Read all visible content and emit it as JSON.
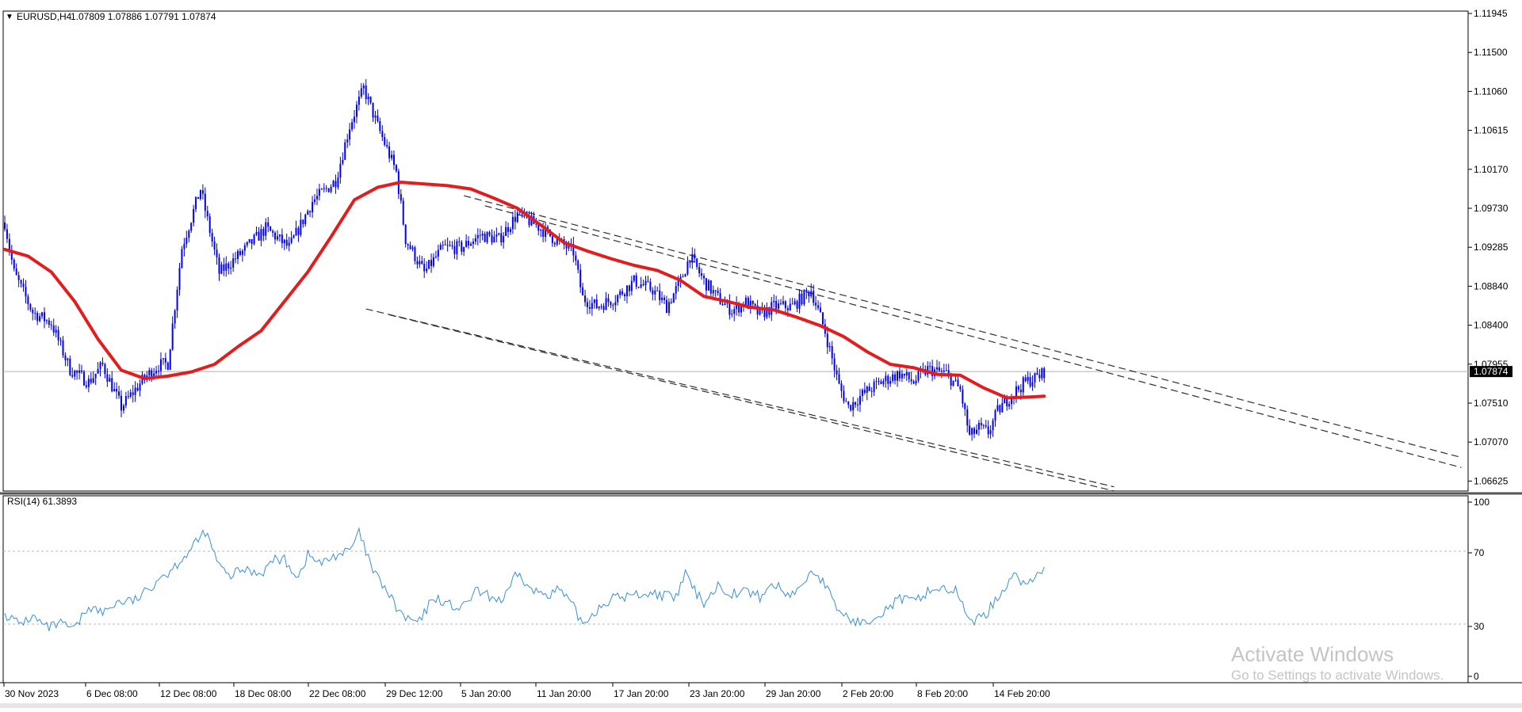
{
  "header": {
    "symbol": "EURUSD,H4",
    "ohlc": "1.07809 1.07886 1.07791 1.07874",
    "marker": "▼"
  },
  "rsi_panel": {
    "label": "RSI(14) 61.3893"
  },
  "watermark": {
    "line1": "Activate Windows",
    "line2": "Go to Settings to activate Windows."
  },
  "colors": {
    "bull": "#0000ff",
    "bear": "#0000ff",
    "wick": "#0000cc",
    "ma": "#e11d1d",
    "rsi": "#3a8fd9",
    "channel": "#303030"
  },
  "chart_data": [
    {
      "type": "candlestick",
      "title": "EURUSD,H4",
      "timeframe": "H4",
      "current_price": 1.07874,
      "ylim": [
        1.0645,
        1.1217
      ],
      "y_ticks": [
        "1.11945",
        "1.11500",
        "1.11060",
        "1.10615",
        "1.10170",
        "1.09730",
        "1.09285",
        "1.08840",
        "1.08400",
        "1.07955",
        "1.07510",
        "1.07070",
        "1.06625"
      ],
      "current_price_label": "1.07874",
      "x_ticks": [
        "30 Nov 2023",
        "6 Dec 08:00",
        "12 Dec 08:00",
        "18 Dec 08:00",
        "22 Dec 08:00",
        "29 Dec 12:00",
        "5 Jan 20:00",
        "11 Jan 20:00",
        "17 Jan 20:00",
        "23 Jan 20:00",
        "29 Jan 20:00",
        "2 Feb 20:00",
        "8 Feb 20:00",
        "14 Feb 20:00"
      ],
      "close_path": [
        [
          0,
          1.0965
        ],
        [
          4,
          1.0905
        ],
        [
          12,
          1.0858
        ],
        [
          20,
          1.0845
        ],
        [
          28,
          1.079
        ],
        [
          36,
          1.0775
        ],
        [
          42,
          1.0795
        ],
        [
          50,
          1.0745
        ],
        [
          60,
          1.078
        ],
        [
          66,
          1.0795
        ],
        [
          70,
          1.0797
        ],
        [
          76,
          1.0935
        ],
        [
          84,
          1.1005
        ],
        [
          92,
          1.0905
        ],
        [
          102,
          1.093
        ],
        [
          112,
          1.0958
        ],
        [
          122,
          1.0935
        ],
        [
          132,
          1.099
        ],
        [
          142,
          1.1015
        ],
        [
          148,
          1.108
        ],
        [
          154,
          1.1125
        ],
        [
          160,
          1.108
        ],
        [
          168,
          1.1025
        ],
        [
          172,
          1.0945
        ],
        [
          180,
          1.0905
        ],
        [
          188,
          1.0935
        ],
        [
          196,
          1.0935
        ],
        [
          204,
          1.095
        ],
        [
          212,
          1.0945
        ],
        [
          220,
          1.0975
        ],
        [
          228,
          1.0962
        ],
        [
          236,
          1.0945
        ],
        [
          244,
          1.093
        ],
        [
          248,
          1.0875
        ],
        [
          254,
          1.0865
        ],
        [
          262,
          1.0875
        ],
        [
          270,
          1.0895
        ],
        [
          278,
          1.0885
        ],
        [
          284,
          1.0865
        ],
        [
          290,
          1.0895
        ],
        [
          294,
          1.0925
        ],
        [
          300,
          1.0895
        ],
        [
          306,
          1.0875
        ],
        [
          312,
          1.086
        ],
        [
          318,
          1.087
        ],
        [
          324,
          1.0855
        ],
        [
          330,
          1.0865
        ],
        [
          338,
          1.0865
        ],
        [
          346,
          1.0885
        ],
        [
          352,
          1.0835
        ],
        [
          358,
          1.077
        ],
        [
          362,
          1.0745
        ],
        [
          368,
          1.076
        ],
        [
          376,
          1.0775
        ],
        [
          384,
          1.0785
        ],
        [
          390,
          1.0775
        ],
        [
          396,
          1.079
        ],
        [
          404,
          1.0785
        ],
        [
          410,
          1.0765
        ],
        [
          414,
          1.071
        ],
        [
          418,
          1.072
        ],
        [
          422,
          1.0715
        ],
        [
          426,
          1.074
        ],
        [
          432,
          1.076
        ],
        [
          438,
          1.0775
        ],
        [
          444,
          1.0782
        ],
        [
          446,
          1.07874
        ]
      ],
      "ma_path": [
        [
          0,
          1.0933
        ],
        [
          10,
          1.0925
        ],
        [
          20,
          1.0906
        ],
        [
          30,
          1.0871
        ],
        [
          40,
          1.0826
        ],
        [
          50,
          1.0789
        ],
        [
          60,
          1.0779
        ],
        [
          70,
          1.0782
        ],
        [
          80,
          1.0787
        ],
        [
          90,
          1.0796
        ],
        [
          100,
          1.0817
        ],
        [
          110,
          1.0836
        ],
        [
          120,
          1.0871
        ],
        [
          130,
          1.0906
        ],
        [
          140,
          1.0948
        ],
        [
          150,
          1.0992
        ],
        [
          160,
          1.1007
        ],
        [
          170,
          1.1013
        ],
        [
          180,
          1.1011
        ],
        [
          190,
          1.1009
        ],
        [
          200,
          1.1005
        ],
        [
          210,
          1.0994
        ],
        [
          220,
          1.0982
        ],
        [
          230,
          1.0962
        ],
        [
          240,
          1.0941
        ],
        [
          250,
          1.0931
        ],
        [
          260,
          1.0922
        ],
        [
          270,
          1.0914
        ],
        [
          280,
          1.0908
        ],
        [
          290,
          1.0896
        ],
        [
          300,
          1.0877
        ],
        [
          310,
          1.0871
        ],
        [
          320,
          1.0864
        ],
        [
          330,
          1.0861
        ],
        [
          340,
          1.0852
        ],
        [
          350,
          1.0842
        ],
        [
          360,
          1.0829
        ],
        [
          370,
          1.0811
        ],
        [
          380,
          1.0796
        ],
        [
          390,
          1.0792
        ],
        [
          400,
          1.0784
        ],
        [
          410,
          1.0783
        ],
        [
          420,
          1.0768
        ],
        [
          430,
          1.0756
        ],
        [
          440,
          1.0757
        ],
        [
          446,
          1.0758
        ]
      ],
      "channel_lines": [
        {
          "from": [
            155,
            1.0862
          ],
          "to": [
            476,
            1.065
          ]
        },
        {
          "from": [
            165,
            1.0855
          ],
          "to": [
            476,
            1.0645
          ]
        },
        {
          "from": [
            197,
            1.0997
          ],
          "to": [
            625,
            1.0685
          ]
        },
        {
          "from": [
            206,
            1.0985
          ],
          "to": [
            625,
            1.0673
          ]
        }
      ]
    },
    {
      "type": "line",
      "title": "RSI(14) 61.3893",
      "name": "RSI(14)",
      "last_value": 61.3893,
      "ylim": [
        0,
        100
      ],
      "y_ticks": [
        "100",
        "70",
        "30",
        "0"
      ],
      "levels": [
        70,
        30
      ],
      "points": [
        [
          0,
          36
        ],
        [
          6,
          30
        ],
        [
          12,
          34
        ],
        [
          18,
          28
        ],
        [
          24,
          30
        ],
        [
          30,
          27
        ],
        [
          36,
          40
        ],
        [
          42,
          36
        ],
        [
          48,
          42
        ],
        [
          56,
          43
        ],
        [
          62,
          49
        ],
        [
          66,
          56
        ],
        [
          70,
          58
        ],
        [
          76,
          66
        ],
        [
          80,
          71
        ],
        [
          86,
          81
        ],
        [
          92,
          62
        ],
        [
          96,
          56
        ],
        [
          102,
          60
        ],
        [
          110,
          58
        ],
        [
          116,
          66
        ],
        [
          120,
          65
        ],
        [
          126,
          56
        ],
        [
          130,
          68
        ],
        [
          136,
          63
        ],
        [
          142,
          68
        ],
        [
          148,
          70
        ],
        [
          152,
          80
        ],
        [
          158,
          59
        ],
        [
          164,
          48
        ],
        [
          168,
          39
        ],
        [
          172,
          33
        ],
        [
          178,
          31
        ],
        [
          184,
          45
        ],
        [
          190,
          41
        ],
        [
          196,
          38
        ],
        [
          202,
          48
        ],
        [
          208,
          45
        ],
        [
          214,
          43
        ],
        [
          220,
          58
        ],
        [
          226,
          48
        ],
        [
          234,
          47
        ],
        [
          238,
          49
        ],
        [
          244,
          39
        ],
        [
          248,
          30
        ],
        [
          254,
          38
        ],
        [
          260,
          44
        ],
        [
          266,
          45
        ],
        [
          270,
          46
        ],
        [
          276,
          47
        ],
        [
          282,
          46
        ],
        [
          288,
          44
        ],
        [
          292,
          58
        ],
        [
          296,
          48
        ],
        [
          300,
          42
        ],
        [
          306,
          51
        ],
        [
          312,
          47
        ],
        [
          318,
          48
        ],
        [
          324,
          45
        ],
        [
          330,
          52
        ],
        [
          336,
          46
        ],
        [
          342,
          50
        ],
        [
          346,
          60
        ],
        [
          352,
          52
        ],
        [
          356,
          40
        ],
        [
          362,
          33
        ],
        [
          368,
          30
        ],
        [
          372,
          34
        ],
        [
          378,
          38
        ],
        [
          384,
          44
        ],
        [
          390,
          42
        ],
        [
          396,
          48
        ],
        [
          402,
          50
        ],
        [
          408,
          48
        ],
        [
          412,
          37
        ],
        [
          416,
          32
        ],
        [
          420,
          34
        ],
        [
          424,
          41
        ],
        [
          428,
          48
        ],
        [
          432,
          57
        ],
        [
          436,
          54
        ],
        [
          440,
          52
        ],
        [
          444,
          58
        ],
        [
          446,
          61.3893
        ]
      ]
    }
  ]
}
